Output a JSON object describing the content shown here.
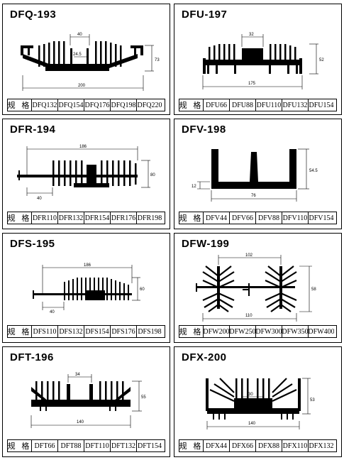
{
  "spec_label": "规 格",
  "panels": [
    {
      "title": "DFQ-193",
      "models": [
        "DFQ132",
        "DFQ154",
        "DFQ176",
        "DFQ198",
        "DFQ220"
      ],
      "dims": [
        "40",
        "24.5",
        "73",
        "200"
      ]
    },
    {
      "title": "DFU-197",
      "models": [
        "DFU66",
        "DFU88",
        "DFU110",
        "DFU132",
        "DFU154"
      ],
      "dims": [
        "32",
        "52",
        "175"
      ]
    },
    {
      "title": "DFR-194",
      "models": [
        "DFR110",
        "DFR132",
        "DFR154",
        "DFR176",
        "DFR198"
      ],
      "dims": [
        "186",
        "80",
        "40"
      ]
    },
    {
      "title": "DFV-198",
      "models": [
        "DFV44",
        "DFV66",
        "DFV88",
        "DFV110",
        "DFV154"
      ],
      "dims": [
        "54.5",
        "12",
        "76"
      ]
    },
    {
      "title": "DFS-195",
      "models": [
        "DFS110",
        "DFS132",
        "DFS154",
        "DFS176",
        "DFS198"
      ],
      "dims": [
        "186",
        "60",
        "40"
      ]
    },
    {
      "title": "DFW-199",
      "models": [
        "DFW200",
        "DFW250",
        "DFW300",
        "DFW350",
        "DFW400"
      ],
      "dims": [
        "102",
        "58",
        "110"
      ]
    },
    {
      "title": "DFT-196",
      "models": [
        "DFT66",
        "DFT88",
        "DFT110",
        "DFT132",
        "DFT154"
      ],
      "dims": [
        "34",
        "55",
        "140"
      ]
    },
    {
      "title": "DFX-200",
      "models": [
        "DFX44",
        "DFX66",
        "DFX88",
        "DFX110",
        "DFX132"
      ],
      "dims": [
        "30",
        "53",
        "140"
      ]
    }
  ]
}
